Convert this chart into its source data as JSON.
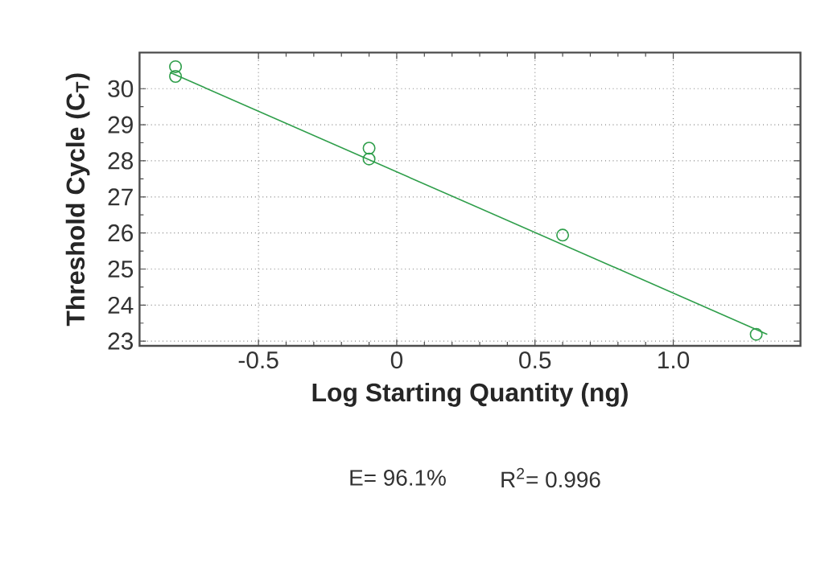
{
  "chart_data": {
    "type": "scatter",
    "xlabel": "Log Starting Quantity (ng)",
    "ylabel": "Threshold Cycle (C$_{T}$)",
    "annotations": [
      "E= 96.1%",
      "R$^{2}$= 0.996"
    ],
    "series": [
      {
        "color": "#2e9e4a",
        "marker": "circle",
        "x": [
          -0.8,
          -0.8,
          -0.1,
          -0.1,
          0.6,
          1.3
        ],
        "values": [
          30.61,
          30.34,
          28.35,
          28.05,
          25.94,
          23.19
        ]
      },
      {
        "type": "line",
        "color": "#2e9e4a",
        "marker": "none",
        "line_style": "solid",
        "x": [
          -0.82,
          1.34
        ],
        "values": [
          30.45,
          23.19
        ]
      }
    ],
    "xlim": [
      -0.93,
      1.46
    ],
    "ylim": [
      22.87,
      31.0
    ],
    "xticks": [
      -0.5,
      {
        "value": 0,
        "label": "0"
      },
      0.5,
      {
        "value": 1.0,
        "label": "1.0"
      }
    ],
    "yticks": [
      23,
      24,
      25,
      26,
      27,
      28,
      29,
      30
    ],
    "grid": true
  }
}
